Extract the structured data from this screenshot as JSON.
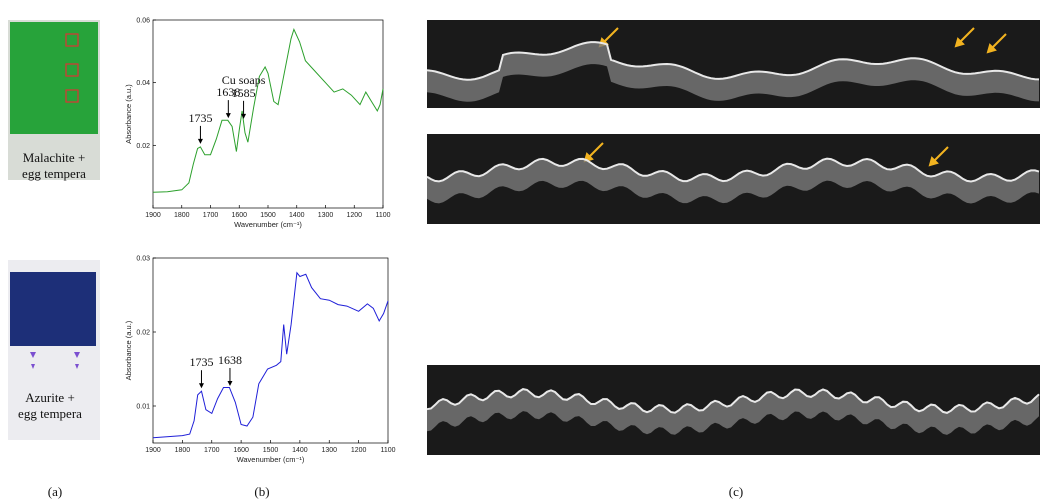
{
  "chart_data": [
    {
      "type": "line",
      "color": "#2ca02c",
      "xlabel": "Wavenumber (cm⁻¹)",
      "ylabel": "Absorbance (a.u.)",
      "x": [
        1900,
        1850,
        1800,
        1775,
        1760,
        1745,
        1735,
        1720,
        1700,
        1680,
        1660,
        1640,
        1625,
        1610,
        1600,
        1590,
        1580,
        1570,
        1550,
        1530,
        1510,
        1500,
        1480,
        1465,
        1450,
        1420,
        1410,
        1390,
        1370,
        1340,
        1300,
        1270,
        1240,
        1210,
        1180,
        1160,
        1140,
        1120,
        1110,
        1100
      ],
      "values": [
        0.005,
        0.0052,
        0.0058,
        0.008,
        0.014,
        0.019,
        0.0195,
        0.017,
        0.017,
        0.022,
        0.028,
        0.028,
        0.026,
        0.018,
        0.025,
        0.031,
        0.024,
        0.021,
        0.032,
        0.042,
        0.045,
        0.043,
        0.034,
        0.033,
        0.04,
        0.054,
        0.057,
        0.053,
        0.047,
        0.044,
        0.04,
        0.037,
        0.038,
        0.036,
        0.033,
        0.037,
        0.034,
        0.031,
        0.033,
        0.038
      ],
      "xlim": [
        1900,
        1100
      ],
      "xticks": [
        1900,
        1800,
        1700,
        1600,
        1500,
        1400,
        1300,
        1200,
        1100
      ],
      "ylim": [
        0,
        0.06
      ],
      "yticks": [
        0.02,
        0.04,
        0.06
      ],
      "annotations": [
        {
          "lines": [
            "1735"
          ],
          "x": 1735
        },
        {
          "lines": [
            "1638"
          ],
          "x": 1638
        },
        {
          "lines": [
            "Cu soaps",
            "1585"
          ],
          "x": 1585
        }
      ]
    },
    {
      "type": "line",
      "color": "#1f1fd8",
      "xlabel": "Wavenumber (cm⁻¹)",
      "ylabel": "Absorbance (a.u.)",
      "x": [
        1900,
        1800,
        1775,
        1760,
        1748,
        1735,
        1720,
        1700,
        1680,
        1660,
        1640,
        1620,
        1600,
        1580,
        1560,
        1540,
        1510,
        1480,
        1465,
        1455,
        1445,
        1430,
        1410,
        1400,
        1380,
        1360,
        1330,
        1300,
        1270,
        1240,
        1200,
        1170,
        1150,
        1130,
        1115,
        1100
      ],
      "values": [
        0.0057,
        0.006,
        0.0062,
        0.008,
        0.0115,
        0.012,
        0.0095,
        0.009,
        0.011,
        0.0125,
        0.0125,
        0.0105,
        0.0075,
        0.0073,
        0.0085,
        0.013,
        0.015,
        0.0155,
        0.016,
        0.021,
        0.017,
        0.021,
        0.028,
        0.0275,
        0.0278,
        0.026,
        0.0245,
        0.0243,
        0.0237,
        0.0235,
        0.0228,
        0.0238,
        0.0232,
        0.0215,
        0.0225,
        0.0242
      ],
      "xlim": [
        1900,
        1100
      ],
      "xticks": [
        1900,
        1800,
        1700,
        1600,
        1500,
        1400,
        1300,
        1200,
        1100
      ],
      "ylim": [
        0.005,
        0.03
      ],
      "yticks": [
        0.01,
        0.02,
        0.03
      ],
      "annotations": [
        {
          "lines": [
            "1735"
          ],
          "x": 1735
        },
        {
          "lines": [
            "1638"
          ],
          "x": 1638
        }
      ]
    }
  ],
  "samples": [
    {
      "lines": [
        "Malachite +",
        "egg tempera"
      ]
    },
    {
      "lines": [
        "Azurite +",
        "egg tempera"
      ]
    }
  ],
  "panel_labels": [
    "(a)",
    "(b)",
    "(c)"
  ]
}
